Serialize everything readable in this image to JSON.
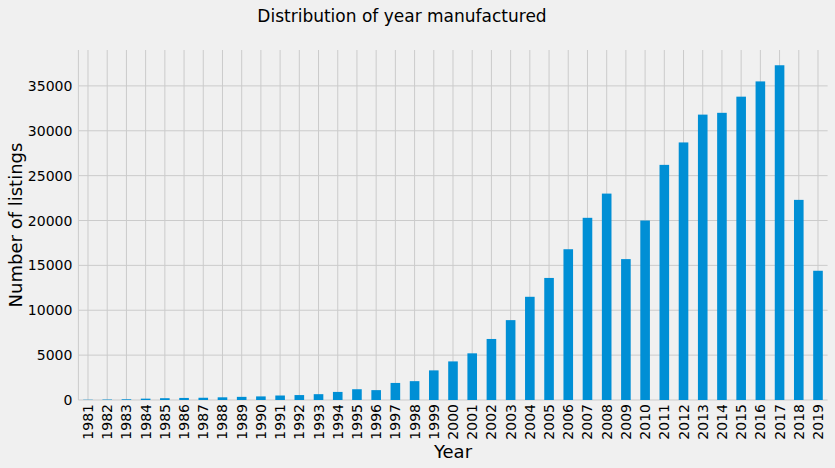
{
  "chart_data": {
    "type": "bar",
    "title": "Distribution of year manufactured",
    "x_label": "Year",
    "y_label": "Number of listings",
    "categories": [
      "1981",
      "1982",
      "1983",
      "1984",
      "1985",
      "1986",
      "1987",
      "1988",
      "1989",
      "1990",
      "1991",
      "1992",
      "1993",
      "1994",
      "1995",
      "1996",
      "1997",
      "1998",
      "1999",
      "2000",
      "2001",
      "2002",
      "2003",
      "2004",
      "2005",
      "2006",
      "2007",
      "2008",
      "2009",
      "2010",
      "2011",
      "2012",
      "2013",
      "2014",
      "2015",
      "2016",
      "2017",
      "2018",
      "2019"
    ],
    "values": [
      30,
      50,
      80,
      150,
      200,
      230,
      250,
      300,
      350,
      400,
      500,
      550,
      650,
      900,
      1200,
      1100,
      1900,
      2100,
      3300,
      4300,
      5200,
      6800,
      8900,
      11500,
      13600,
      16800,
      20300,
      23000,
      15700,
      20000,
      26200,
      28700,
      31800,
      32000,
      33800,
      35500,
      37300,
      22300,
      14400
    ],
    "color": "#008fd5",
    "ylim": [
      0,
      39000
    ],
    "yticks": [
      0,
      5000,
      10000,
      15000,
      20000,
      25000,
      30000,
      35000
    ],
    "grid": true
  }
}
